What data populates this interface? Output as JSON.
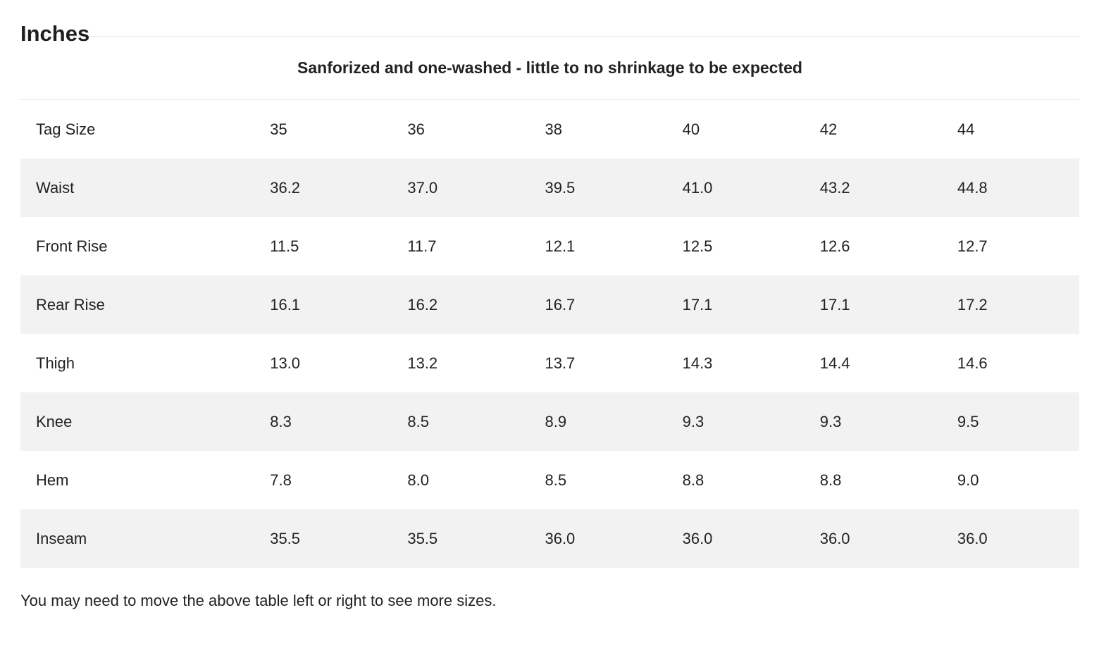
{
  "heading": "Inches",
  "subtitle": "Sanforized and one-washed - little to no shrinkage to be expected",
  "table": {
    "rows": [
      {
        "label": "Tag Size",
        "values": [
          "35",
          "36",
          "38",
          "40",
          "42",
          "44"
        ]
      },
      {
        "label": "Waist",
        "values": [
          "36.2",
          "37.0",
          "39.5",
          "41.0",
          "43.2",
          "44.8"
        ]
      },
      {
        "label": "Front Rise",
        "values": [
          "11.5",
          "11.7",
          "12.1",
          "12.5",
          "12.6",
          "12.7"
        ]
      },
      {
        "label": "Rear Rise",
        "values": [
          "16.1",
          "16.2",
          "16.7",
          "17.1",
          "17.1",
          "17.2"
        ]
      },
      {
        "label": "Thigh",
        "values": [
          "13.0",
          "13.2",
          "13.7",
          "14.3",
          "14.4",
          "14.6"
        ]
      },
      {
        "label": "Knee",
        "values": [
          "8.3",
          "8.5",
          "8.9",
          "9.3",
          "9.3",
          "9.5"
        ]
      },
      {
        "label": "Hem",
        "values": [
          "7.8",
          "8.0",
          "8.5",
          "8.8",
          "8.8",
          "9.0"
        ]
      },
      {
        "label": "Inseam",
        "values": [
          "35.5",
          "35.5",
          "36.0",
          "36.0",
          "36.0",
          "36.0"
        ]
      }
    ]
  },
  "note": "You may need to move the above table left or right to see more sizes.",
  "colors": {
    "text": "#222222",
    "stripe": "#f2f2f2",
    "divider": "#e8e8e8"
  }
}
